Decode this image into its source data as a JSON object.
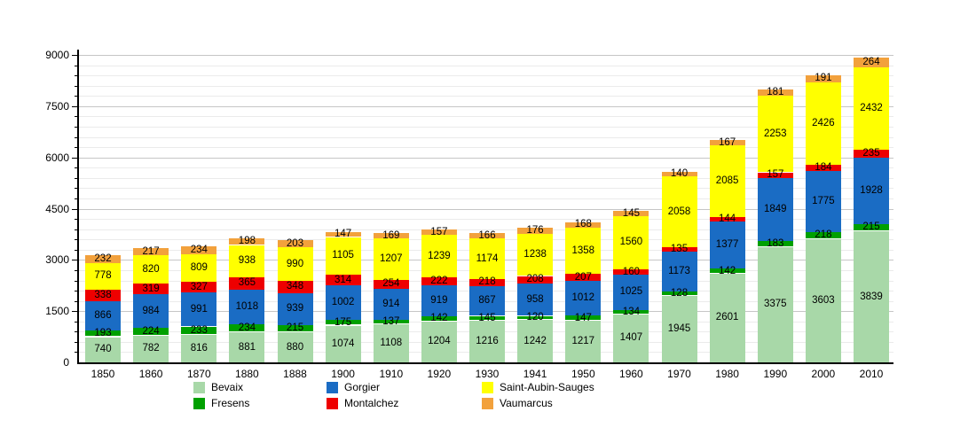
{
  "chart_data": {
    "type": "bar",
    "stacked": true,
    "title": "",
    "xlabel": "",
    "ylabel": "",
    "categories": [
      "1850",
      "1860",
      "1870",
      "1880",
      "1888",
      "1900",
      "1910",
      "1920",
      "1930",
      "1941",
      "1950",
      "1960",
      "1970",
      "1980",
      "1990",
      "2000",
      "2010"
    ],
    "series": [
      {
        "name": "Bevaix",
        "color": "#a8d8a8",
        "values": [
          740,
          782,
          816,
          881,
          880,
          1074,
          1108,
          1204,
          1216,
          1242,
          1217,
          1407,
          1945,
          2601,
          3375,
          3603,
          3839
        ]
      },
      {
        "name": "Fresens",
        "color": "#00a000",
        "values": [
          193,
          224,
          233,
          234,
          215,
          175,
          137,
          142,
          145,
          120,
          147,
          134,
          128,
          142,
          183,
          218,
          215
        ]
      },
      {
        "name": "Gorgier",
        "color": "#1a6cc4",
        "values": [
          866,
          984,
          991,
          1018,
          939,
          1002,
          914,
          919,
          867,
          958,
          1012,
          1025,
          1173,
          1377,
          1849,
          1775,
          1928
        ]
      },
      {
        "name": "Montalchez",
        "color": "#ee0000",
        "values": [
          338,
          319,
          327,
          365,
          348,
          314,
          254,
          222,
          218,
          208,
          207,
          160,
          135,
          144,
          157,
          184,
          235
        ]
      },
      {
        "name": "Saint-Aubin-Sauges",
        "color": "#ffff00",
        "values": [
          778,
          820,
          809,
          938,
          990,
          1105,
          1207,
          1239,
          1174,
          1238,
          1358,
          1560,
          2058,
          2085,
          2253,
          2426,
          2432
        ]
      },
      {
        "name": "Vaumarcus",
        "color": "#f2a13c",
        "values": [
          232,
          217,
          234,
          198,
          203,
          147,
          169,
          157,
          166,
          176,
          168,
          145,
          140,
          167,
          181,
          191,
          264
        ]
      }
    ],
    "ylim": [
      0,
      9000
    ],
    "y_ticks": [
      0,
      1500,
      3000,
      4500,
      6000,
      7500,
      9000
    ],
    "y_minor_step": 300,
    "grid": true,
    "legend_position": "bottom",
    "legend_columns": [
      [
        0,
        1
      ],
      [
        2,
        3
      ],
      [
        4,
        5
      ]
    ]
  }
}
